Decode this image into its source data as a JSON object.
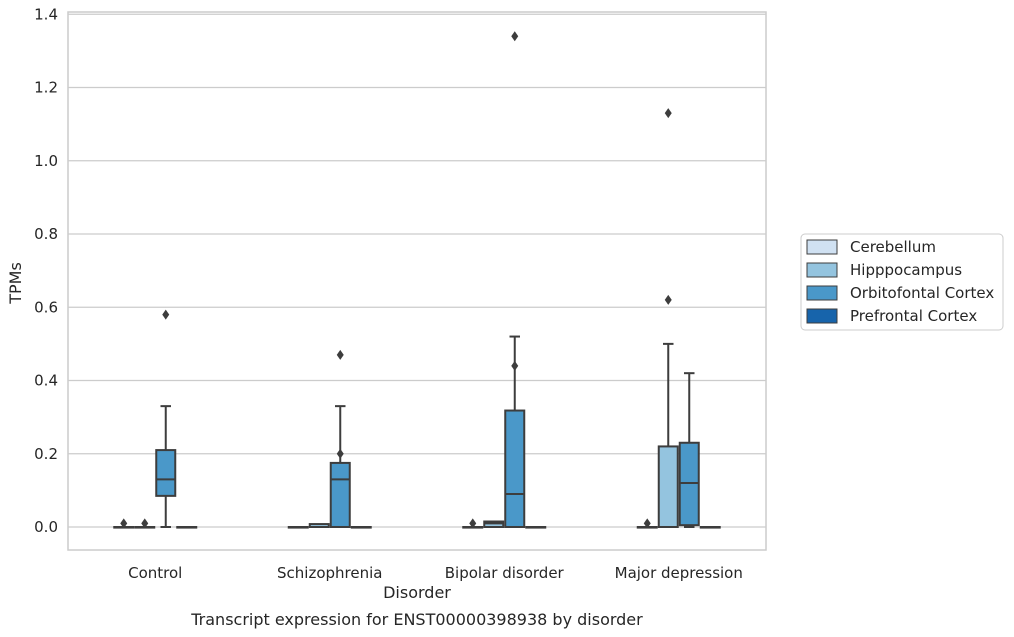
{
  "chart_data": {
    "type": "box",
    "title": "Transcript expression for ENST00000398938 by disorder",
    "xlabel": "Disorder",
    "ylabel": "TPMs",
    "categories": [
      "Control",
      "Schizophrenia",
      "Bipolar disorder",
      "Major depression"
    ],
    "ylim": [
      -0.065,
      1.41
    ],
    "yticks": [
      "0.0",
      "0.2",
      "0.4",
      "0.6",
      "0.8",
      "1.0",
      "1.2",
      "1.4"
    ],
    "ytick_values": [
      0,
      0.2,
      0.4,
      0.6,
      0.8,
      1.0,
      1.2,
      1.4
    ],
    "grid": "horizontal",
    "legend_position": "right",
    "series": [
      {
        "name": "Cerebellum",
        "color": "#d0e1f2",
        "boxes": [
          {
            "min": 0,
            "q1": 0,
            "median": 0,
            "q3": 0,
            "max": 0,
            "outliers": [
              0.01
            ]
          },
          {
            "min": 0,
            "q1": 0,
            "median": 0,
            "q3": 0,
            "max": 0,
            "outliers": []
          },
          {
            "min": 0,
            "q1": 0,
            "median": 0,
            "q3": 0,
            "max": 0,
            "outliers": [
              0.01
            ]
          },
          {
            "min": 0,
            "q1": 0,
            "median": 0,
            "q3": 0,
            "max": 0,
            "outliers": [
              0.01
            ]
          }
        ]
      },
      {
        "name": "Hipppocampus",
        "color": "#94c4df",
        "boxes": [
          {
            "min": 0,
            "q1": 0,
            "median": 0,
            "q3": 0,
            "max": 0,
            "outliers": [
              0.01
            ]
          },
          {
            "min": 0,
            "q1": 0,
            "median": 0,
            "q3": 0.008,
            "max": 0.008,
            "outliers": []
          },
          {
            "min": 0,
            "q1": 0,
            "median": 0.01,
            "q3": 0.015,
            "max": 0.015,
            "outliers": []
          },
          {
            "min": 0,
            "q1": 0,
            "median": 0,
            "q3": 0.22,
            "max": 0.5,
            "outliers": [
              0.62,
              1.13
            ]
          }
        ]
      },
      {
        "name": "Orbitofontal Cortex",
        "color": "#4a98c9",
        "boxes": [
          {
            "min": 0,
            "q1": 0.085,
            "median": 0.13,
            "q3": 0.21,
            "max": 0.33,
            "outliers": [
              0.58
            ]
          },
          {
            "min": 0,
            "q1": 0,
            "median": 0.13,
            "q3": 0.175,
            "max": 0.33,
            "outliers": [
              0.2,
              0.47
            ]
          },
          {
            "min": 0,
            "q1": 0,
            "median": 0.09,
            "q3": 0.318,
            "max": 0.52,
            "outliers": [
              0.44,
              1.34
            ]
          },
          {
            "min": 0,
            "q1": 0.005,
            "median": 0.12,
            "q3": 0.23,
            "max": 0.42,
            "outliers": []
          }
        ]
      },
      {
        "name": "Prefrontal Cortex",
        "color": "#1764ab",
        "boxes": [
          {
            "min": 0,
            "q1": 0,
            "median": 0,
            "q3": 0,
            "max": 0,
            "outliers": []
          },
          {
            "min": 0,
            "q1": 0,
            "median": 0,
            "q3": 0,
            "max": 0,
            "outliers": []
          },
          {
            "min": 0,
            "q1": 0,
            "median": 0,
            "q3": 0,
            "max": 0,
            "outliers": []
          },
          {
            "min": 0,
            "q1": 0,
            "median": 0,
            "q3": 0,
            "max": 0,
            "outliers": []
          }
        ]
      }
    ]
  }
}
